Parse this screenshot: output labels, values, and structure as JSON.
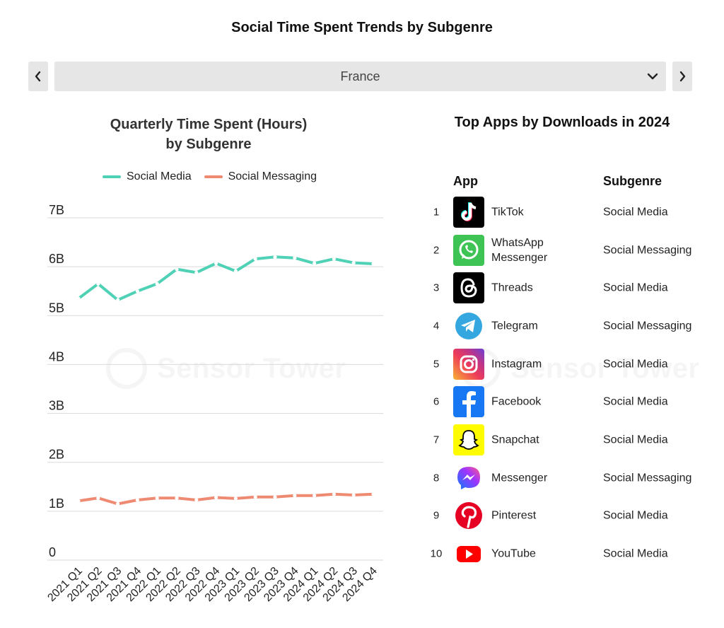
{
  "page": {
    "title": "Social Time Spent Trends by Subgenre",
    "watermark": "Sensor Tower"
  },
  "selector": {
    "value": "France",
    "prev_icon": "chevron-left-icon",
    "next_icon": "chevron-right-icon",
    "dropdown_icon": "chevron-down-icon"
  },
  "colors": {
    "social_media": "#4fd1b6",
    "social_messaging": "#ef8a72",
    "grid": "#d9d9d9",
    "control_bg": "#e6e6e6"
  },
  "chart_data": {
    "type": "line",
    "title_line1": "Quarterly Time Spent (Hours)",
    "title_line2": "by Subgenre",
    "xlabel": "",
    "ylabel": "",
    "legend_position": "top",
    "grid": true,
    "ylim": [
      0,
      7000000000
    ],
    "y_ticks": [
      {
        "value": 7000000000,
        "label": "7B"
      },
      {
        "value": 6000000000,
        "label": "6B"
      },
      {
        "value": 5000000000,
        "label": "5B"
      },
      {
        "value": 4000000000,
        "label": "4B"
      },
      {
        "value": 3000000000,
        "label": "3B"
      },
      {
        "value": 2000000000,
        "label": "2B"
      },
      {
        "value": 1000000000,
        "label": "1B"
      },
      {
        "value": 0,
        "label": "0"
      }
    ],
    "categories": [
      "2021 Q1",
      "2021 Q2",
      "2021 Q3",
      "2021 Q4",
      "2022 Q1",
      "2022 Q2",
      "2022 Q3",
      "2022 Q4",
      "2023 Q1",
      "2023 Q2",
      "2023 Q3",
      "2023 Q4",
      "2024 Q1",
      "2024 Q2",
      "2024 Q3",
      "2024 Q4"
    ],
    "series": [
      {
        "name": "Social Media",
        "color": "#4fd1b6",
        "values": [
          5350000000,
          5650000000,
          5320000000,
          5500000000,
          5650000000,
          5950000000,
          5880000000,
          6070000000,
          5910000000,
          6160000000,
          6200000000,
          6180000000,
          6070000000,
          6160000000,
          6080000000,
          6060000000
        ]
      },
      {
        "name": "Social Messaging",
        "color": "#ef8a72",
        "values": [
          1210000000,
          1270000000,
          1150000000,
          1230000000,
          1270000000,
          1270000000,
          1230000000,
          1280000000,
          1260000000,
          1290000000,
          1290000000,
          1320000000,
          1320000000,
          1350000000,
          1330000000,
          1350000000
        ]
      }
    ]
  },
  "top_apps": {
    "title": "Top Apps by Downloads in 2024",
    "col_app": "App",
    "col_subgenre": "Subgenre",
    "rows": [
      {
        "rank": "1",
        "name": "TikTok",
        "subgenre": "Social Media",
        "icon": "tiktok-icon"
      },
      {
        "rank": "2",
        "name": "WhatsApp Messenger",
        "subgenre": "Social Messaging",
        "icon": "whatsapp-icon"
      },
      {
        "rank": "3",
        "name": "Threads",
        "subgenre": "Social Media",
        "icon": "threads-icon"
      },
      {
        "rank": "4",
        "name": "Telegram",
        "subgenre": "Social Messaging",
        "icon": "telegram-icon"
      },
      {
        "rank": "5",
        "name": "Instagram",
        "subgenre": "Social Media",
        "icon": "instagram-icon"
      },
      {
        "rank": "6",
        "name": "Facebook",
        "subgenre": "Social Media",
        "icon": "facebook-icon"
      },
      {
        "rank": "7",
        "name": "Snapchat",
        "subgenre": "Social Media",
        "icon": "snapchat-icon"
      },
      {
        "rank": "8",
        "name": "Messenger",
        "subgenre": "Social Messaging",
        "icon": "messenger-icon"
      },
      {
        "rank": "9",
        "name": "Pinterest",
        "subgenre": "Social Media",
        "icon": "pinterest-icon"
      },
      {
        "rank": "10",
        "name": "YouTube",
        "subgenre": "Social Media",
        "icon": "youtube-icon"
      }
    ]
  }
}
